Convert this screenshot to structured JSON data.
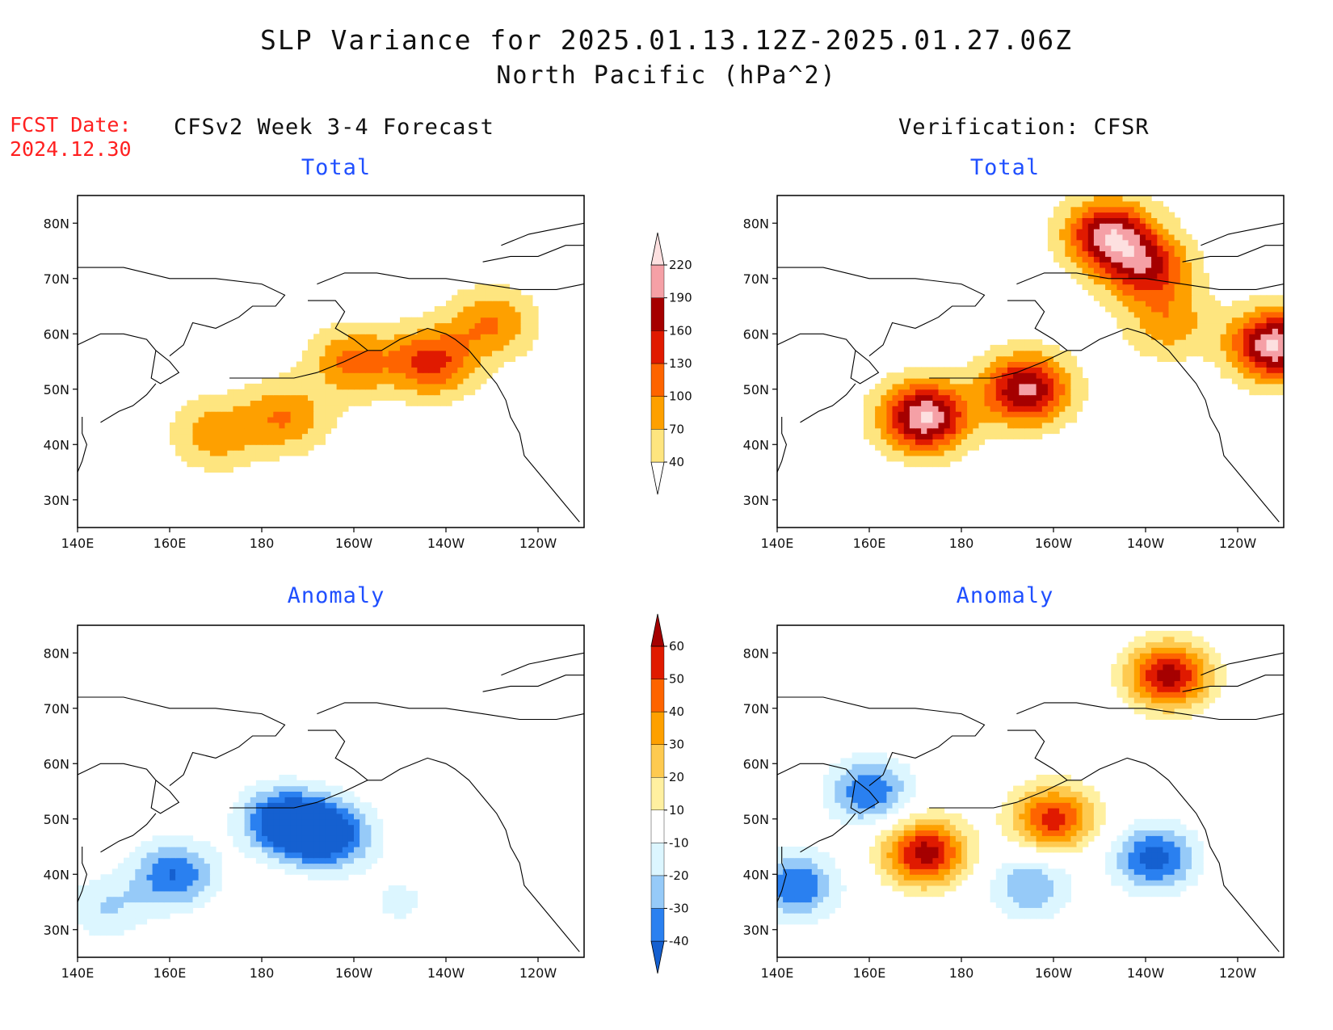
{
  "title": {
    "line1": "SLP Variance for 2025.01.13.12Z-2025.01.27.06Z",
    "line2": "North Pacific (hPa^2)"
  },
  "fcst": {
    "label": "FCST Date:",
    "date": "2024.12.30"
  },
  "columns": {
    "left": "CFSv2 Week 3-4 Forecast",
    "right": "Verification: CFSR"
  },
  "panel_titles": {
    "total": "Total",
    "anomaly": "Anomaly"
  },
  "axes": {
    "x_labels": [
      "140E",
      "160E",
      "180",
      "160W",
      "140W",
      "120W"
    ],
    "x_values": [
      140,
      160,
      180,
      200,
      220,
      240
    ],
    "y_labels": [
      "30N",
      "40N",
      "50N",
      "60N",
      "70N",
      "80N"
    ],
    "y_values": [
      30,
      40,
      50,
      60,
      70,
      80
    ]
  },
  "colorbars": {
    "total": {
      "levels": [
        "40",
        "70",
        "100",
        "130",
        "160",
        "190",
        "220"
      ],
      "colors": [
        "#ffffff",
        "#fee57f",
        "#fea000",
        "#fe6400",
        "#e01a00",
        "#a50000",
        "#f5a0a6",
        "#fde0e0"
      ]
    },
    "anomaly": {
      "levels": [
        "-40",
        "-30",
        "-20",
        "-10",
        "10",
        "20",
        "30",
        "40",
        "50",
        "60"
      ],
      "colors": [
        "#1560d0",
        "#2a80f0",
        "#96caf8",
        "#dcf6ff",
        "#ffffff",
        "#fff0a0",
        "#feca50",
        "#fea000",
        "#fe6400",
        "#e01a00",
        "#a50000"
      ]
    }
  },
  "chart_data": [
    {
      "type": "heatmap",
      "title": "Total",
      "column": "CFSv2 Week 3-4 Forecast",
      "xlim": [
        140,
        250
      ],
      "ylim": [
        25,
        85
      ],
      "features": [
        {
          "lon": 230,
          "lat": 62,
          "value": 100
        },
        {
          "lon": 200,
          "lat": 55,
          "value": 110
        },
        {
          "lon": 185,
          "lat": 45,
          "value": 100
        },
        {
          "lon": 170,
          "lat": 42,
          "value": 90
        },
        {
          "lon": 217,
          "lat": 55,
          "value": 140
        },
        {
          "lon": 160,
          "lat": 80,
          "value": 30
        }
      ]
    },
    {
      "type": "heatmap",
      "title": "Total",
      "column": "Verification: CFSR",
      "xlim": [
        140,
        250
      ],
      "ylim": [
        25,
        85
      ],
      "features": [
        {
          "lon": 172,
          "lat": 45,
          "value": 225
        },
        {
          "lon": 194,
          "lat": 50,
          "value": 200
        },
        {
          "lon": 212,
          "lat": 78,
          "value": 200
        },
        {
          "lon": 248,
          "lat": 58,
          "value": 225
        },
        {
          "lon": 220,
          "lat": 72,
          "value": 160
        },
        {
          "lon": 225,
          "lat": 62,
          "value": 90
        },
        {
          "lon": 150,
          "lat": 70,
          "value": 30
        }
      ]
    },
    {
      "type": "heatmap",
      "title": "Anomaly",
      "column": "CFSv2 Week 3-4 Forecast",
      "xlim": [
        140,
        250
      ],
      "ylim": [
        25,
        85
      ],
      "features": [
        {
          "lon": 184,
          "lat": 50,
          "value": -40
        },
        {
          "lon": 161,
          "lat": 40,
          "value": -40
        },
        {
          "lon": 196,
          "lat": 47,
          "value": -35
        },
        {
          "lon": 190,
          "lat": 48,
          "value": -30
        },
        {
          "lon": 146,
          "lat": 34,
          "value": -20
        },
        {
          "lon": 210,
          "lat": 35,
          "value": -12
        }
      ]
    },
    {
      "type": "heatmap",
      "title": "Anomaly",
      "column": "Verification: CFSR",
      "xlim": [
        140,
        250
      ],
      "ylim": [
        25,
        85
      ],
      "features": [
        {
          "lon": 225,
          "lat": 76,
          "value": 65
        },
        {
          "lon": 172,
          "lat": 44,
          "value": 65
        },
        {
          "lon": 200,
          "lat": 50,
          "value": 55
        },
        {
          "lon": 160,
          "lat": 55,
          "value": -40
        },
        {
          "lon": 144,
          "lat": 38,
          "value": -40
        },
        {
          "lon": 222,
          "lat": 43,
          "value": -45
        },
        {
          "lon": 195,
          "lat": 38,
          "value": -30
        }
      ]
    }
  ]
}
